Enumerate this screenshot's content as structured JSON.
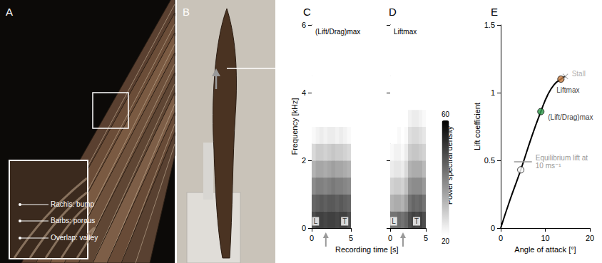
{
  "photos": [
    {
      "label": "A",
      "inset_labels": [
        "Rachis: bump",
        "Barbs: porous",
        "Overlap: valley"
      ]
    },
    {
      "label": "B"
    }
  ],
  "chart_data": [
    {
      "label": "C",
      "type": "heatmap",
      "title": "(Lift/Drag)max",
      "xlabel": "Recording time [s]",
      "ylabel": "Frequency [kHz]",
      "x_bins": [
        0,
        0.5,
        1,
        1.5,
        2,
        2.5,
        3,
        3.5,
        4,
        4.5,
        5
      ],
      "y_bins": [
        0,
        0.5,
        1,
        1.5,
        2,
        2.5,
        3,
        3.5,
        4,
        4.5,
        5,
        5.5,
        6
      ],
      "cells": [
        [
          48,
          50,
          50,
          49,
          50,
          50,
          49,
          50,
          50,
          48
        ],
        [
          44,
          45,
          46,
          45,
          46,
          46,
          45,
          46,
          45,
          44
        ],
        [
          38,
          40,
          40,
          39,
          40,
          41,
          40,
          40,
          39,
          38
        ],
        [
          32,
          34,
          34,
          33,
          34,
          35,
          34,
          34,
          33,
          32
        ],
        [
          26,
          28,
          28,
          27,
          28,
          29,
          28,
          28,
          27,
          26
        ],
        [
          21,
          22,
          23,
          22,
          23,
          23,
          22,
          23,
          22,
          21
        ],
        [
          20,
          20,
          20,
          20,
          20,
          20,
          20,
          20,
          20,
          20
        ],
        [
          20,
          20,
          20,
          20,
          20,
          20,
          20,
          20,
          20,
          20
        ],
        [
          20,
          20,
          20,
          20,
          20,
          20,
          20,
          20,
          20,
          20
        ],
        [
          20,
          20,
          20,
          20,
          20,
          20,
          20,
          20,
          20,
          20
        ],
        [
          20,
          20,
          20,
          20,
          20,
          20,
          20,
          20,
          20,
          20
        ],
        [
          20,
          20,
          20,
          20,
          20,
          20,
          20,
          20,
          20,
          20
        ]
      ],
      "xlim": [
        0,
        5
      ],
      "xticks": [
        0,
        5
      ],
      "ylim": [
        0,
        6
      ],
      "yticks": [
        0,
        2,
        4,
        6
      ],
      "tick_labels": true,
      "annotations": [
        {
          "text": "L",
          "x": 0.5,
          "y": 0.2
        },
        {
          "text": "T",
          "x": 4.2,
          "y": 0.2
        }
      ],
      "arrow_x": 1.8
    },
    {
      "label": "D",
      "type": "heatmap",
      "title": "Liftmax",
      "x_bins": [
        0,
        0.5,
        1,
        1.5,
        2,
        2.5,
        3,
        3.5,
        4,
        4.5,
        5
      ],
      "y_bins": [
        0,
        0.5,
        1,
        1.5,
        2,
        2.5,
        3,
        3.5,
        4,
        4.5,
        5,
        5.5,
        6
      ],
      "cells": [
        [
          42,
          42,
          43,
          42,
          44,
          48,
          50,
          49,
          50,
          48
        ],
        [
          32,
          33,
          33,
          32,
          35,
          42,
          44,
          43,
          44,
          42
        ],
        [
          27,
          28,
          28,
          27,
          30,
          37,
          38,
          38,
          38,
          36
        ],
        [
          23,
          24,
          24,
          23,
          26,
          32,
          33,
          33,
          33,
          31
        ],
        [
          21,
          22,
          22,
          21,
          23,
          28,
          29,
          29,
          28,
          27
        ],
        [
          20,
          20,
          21,
          20,
          21,
          25,
          26,
          26,
          25,
          24
        ],
        [
          20,
          20,
          20,
          20,
          20,
          22,
          23,
          23,
          22,
          21
        ],
        [
          20,
          20,
          20,
          20,
          20,
          20,
          20,
          20,
          20,
          20
        ],
        [
          20,
          20,
          20,
          20,
          20,
          20,
          20,
          20,
          20,
          20
        ],
        [
          20,
          20,
          20,
          20,
          20,
          20,
          20,
          20,
          20,
          20
        ],
        [
          20,
          20,
          20,
          20,
          20,
          20,
          20,
          20,
          20,
          20
        ],
        [
          20,
          20,
          20,
          20,
          20,
          20,
          20,
          20,
          20,
          20
        ]
      ],
      "xlim": [
        0,
        5
      ],
      "xticks": [
        0,
        5
      ],
      "ylim": [
        0,
        6
      ],
      "yticks": [
        0,
        2,
        4,
        6
      ],
      "tick_labels": "x",
      "annotations": [
        {
          "text": "L",
          "x": 0.5,
          "y": 0.2
        },
        {
          "text": "T",
          "x": 3.7,
          "y": 0.2
        }
      ],
      "arrow_x": 1.8,
      "colorbar": {
        "label": "Power spectral density",
        "range": [
          20,
          60
        ],
        "ticks": [
          20,
          60
        ]
      }
    },
    {
      "label": "E",
      "type": "line",
      "xlabel": "Angle of attack [°]",
      "ylabel": "Lift coefficient",
      "x": [
        0,
        2,
        4.5,
        7,
        9,
        10.5,
        12,
        13.5,
        14.5
      ],
      "values": [
        0,
        0.2,
        0.43,
        0.68,
        0.86,
        0.98,
        1.06,
        1.1,
        1.12
      ],
      "color": "#000000",
      "xlim": [
        0,
        20
      ],
      "xticks": [
        0,
        10,
        20
      ],
      "ylim": [
        0,
        1.5
      ],
      "yticks": [
        0,
        0.5,
        1,
        1.5
      ],
      "points": [
        {
          "x": 4.5,
          "y": 0.43,
          "color": "#ffffff",
          "marker": "circle"
        },
        {
          "x": 9,
          "y": 0.86,
          "color": "#2e9a4a",
          "marker": "circle",
          "label": "(Lift/Drag)max"
        },
        {
          "x": 13.5,
          "y": 1.1,
          "color": "#c47a3e",
          "marker": "circle",
          "label": "Liftmax"
        },
        {
          "x": 14.5,
          "y": 1.12,
          "color": "#999999",
          "marker": "cross",
          "label": "Stall"
        }
      ],
      "reference": {
        "label": "Equilibrium lift at 10 ms⁻¹",
        "x": [
          3,
          7
        ],
        "y": [
          0.49,
          0.49
        ],
        "color": "#999999"
      }
    }
  ]
}
